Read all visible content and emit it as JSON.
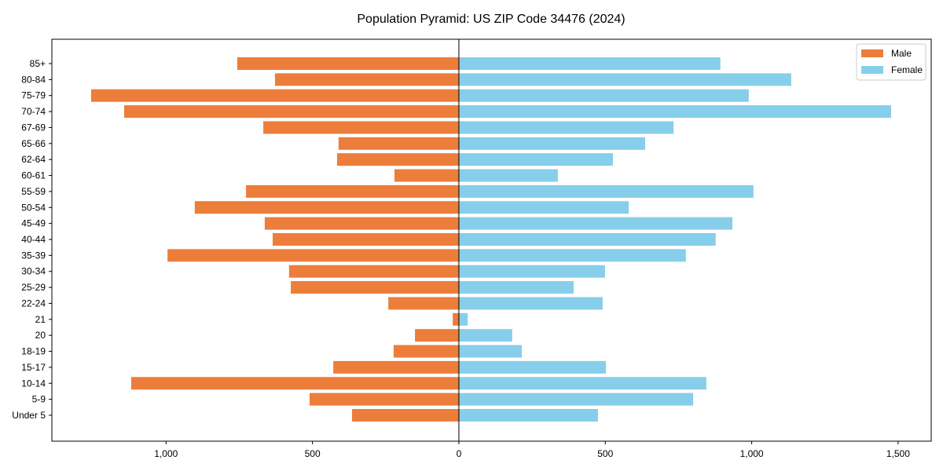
{
  "chart_data": {
    "type": "bar",
    "orientation": "horizontal",
    "title": "Population Pyramid: US ZIP Code 34476 (2024)",
    "xlabel": "",
    "ylabel": "",
    "categories": [
      "85+",
      "80-84",
      "75-79",
      "70-74",
      "67-69",
      "65-66",
      "62-64",
      "60-61",
      "55-59",
      "50-54",
      "45-49",
      "40-44",
      "35-39",
      "30-34",
      "25-29",
      "22-24",
      "21",
      "20",
      "18-19",
      "15-17",
      "10-14",
      "5-9",
      "Under 5"
    ],
    "series": [
      {
        "name": "Male",
        "color": "#ED7D3A",
        "side": "left",
        "values": [
          757,
          628,
          1256,
          1143,
          668,
          411,
          416,
          220,
          727,
          902,
          663,
          636,
          995,
          580,
          574,
          241,
          21,
          150,
          223,
          429,
          1119,
          510,
          365
        ]
      },
      {
        "name": "Female",
        "color": "#87CEEB",
        "side": "right",
        "values": [
          893,
          1135,
          990,
          1476,
          733,
          636,
          526,
          338,
          1006,
          580,
          934,
          877,
          775,
          499,
          392,
          491,
          30,
          182,
          215,
          502,
          845,
          800,
          475
        ]
      }
    ],
    "xlim": [
      -1390,
      1613
    ],
    "xticks": [
      -1000,
      -500,
      0,
      500,
      1000,
      1500
    ],
    "xtick_labels": [
      "1,000",
      "500",
      "0",
      "500",
      "1,000",
      "1,500"
    ],
    "legend": {
      "placement": "top-right",
      "entries": [
        "Male",
        "Female"
      ]
    },
    "grid": false
  }
}
